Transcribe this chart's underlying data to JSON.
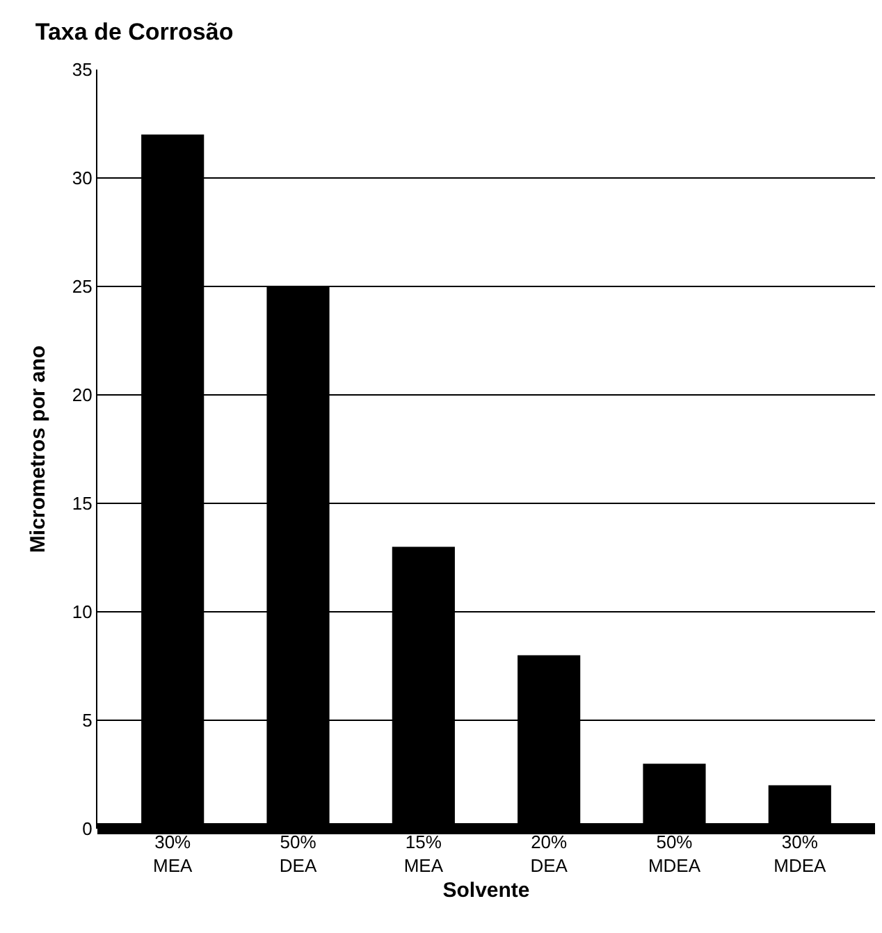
{
  "chart_data": {
    "type": "bar",
    "title": "Taxa de Corrosão",
    "xlabel": "Solvente",
    "ylabel": "Micrometros por ano",
    "categories": [
      "30%\nMEA",
      "50%\nDEA",
      "15%\nMEA",
      "20%\nDEA",
      "50%\nMDEA",
      "30%\nMDEA"
    ],
    "values": [
      32,
      25,
      13,
      8,
      3,
      2
    ],
    "color": "#000000",
    "ylim": [
      0,
      35
    ],
    "yticks": [
      0,
      5,
      10,
      15,
      20,
      25,
      30,
      35
    ],
    "grid": "y"
  }
}
